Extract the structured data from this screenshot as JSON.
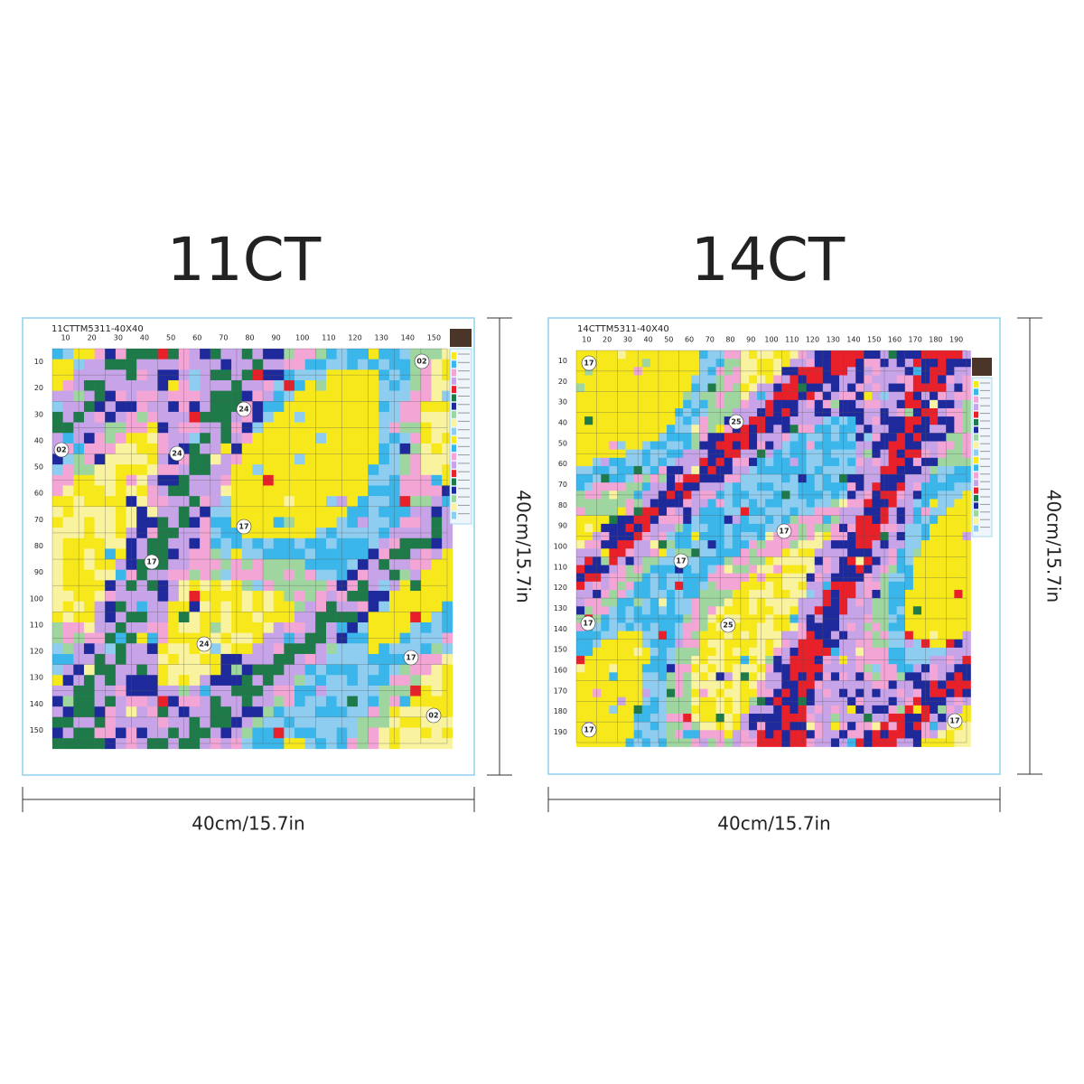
{
  "panels": [
    {
      "title": "11CT",
      "code": "11CTTM5311-40X40",
      "x_ticks": [
        "10",
        "20",
        "30",
        "40",
        "50",
        "60",
        "70",
        "80",
        "90",
        "100",
        "110",
        "120",
        "130",
        "140",
        "150"
      ],
      "y_ticks": [
        "10",
        "20",
        "30",
        "40",
        "50",
        "60",
        "70",
        "80",
        "90",
        "100",
        "110",
        "120",
        "130",
        "140",
        "150"
      ],
      "symbols": [
        "02",
        "02",
        "24",
        "24",
        "17",
        "17",
        "24",
        "17",
        "02"
      ],
      "width_label": "40cm/15.7in",
      "height_label": "40cm/15.7in"
    },
    {
      "title": "14CT",
      "code": "14CTTM5311-40X40",
      "x_ticks": [
        "10",
        "20",
        "30",
        "40",
        "50",
        "60",
        "70",
        "80",
        "90",
        "100",
        "110",
        "120",
        "130",
        "140",
        "150",
        "160",
        "170",
        "180",
        "190"
      ],
      "y_ticks": [
        "10",
        "20",
        "30",
        "40",
        "50",
        "60",
        "70",
        "80",
        "90",
        "100",
        "110",
        "120",
        "130",
        "140",
        "150",
        "160",
        "170",
        "180",
        "190"
      ],
      "symbols": [
        "17",
        "25",
        "17",
        "17",
        "25",
        "17",
        "17",
        "17"
      ],
      "width_label": "40cm/15.7in",
      "height_label": "40cm/15.7in"
    }
  ]
}
